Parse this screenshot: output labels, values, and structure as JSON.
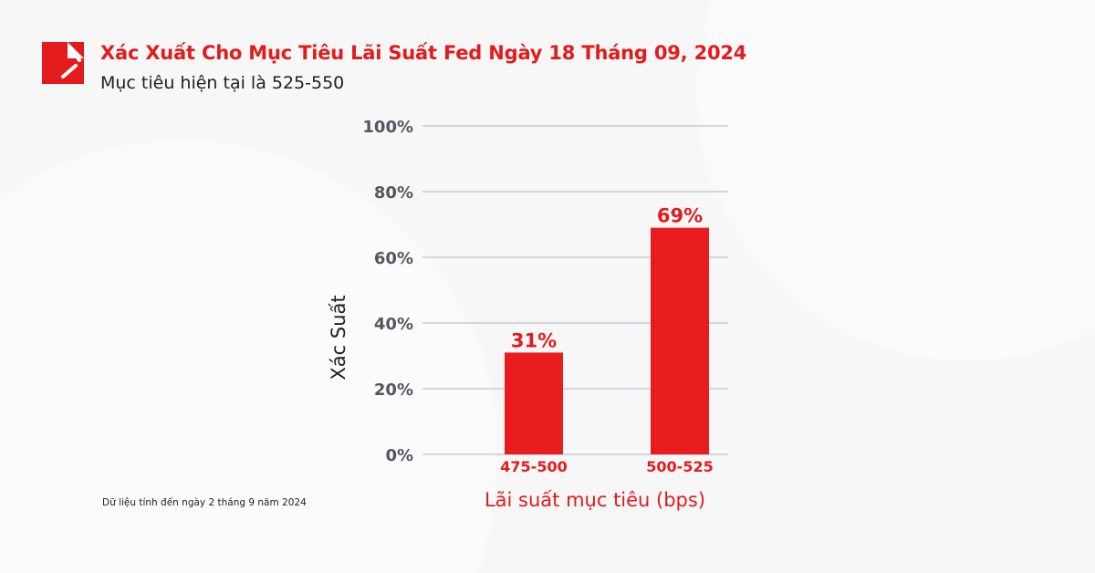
{
  "header": {
    "title": "Xác Xuất Cho Mục Tiêu Lãi Suất Fed Ngày 18 Tháng 09, 2024",
    "subtitle": "Mục tiêu hiện tại là 525-550"
  },
  "footnote": "Dữ liệu tính đến ngày 2 tháng 9 năm 2024",
  "colors": {
    "accent": "#e31b1d",
    "bar": "#e81c1f",
    "grid": "#c9cad3",
    "tick_text": "#555660"
  },
  "chart_data": {
    "type": "bar",
    "title": "Xác Xuất Cho Mục Tiêu Lãi Suất Fed Ngày 18 Tháng 09, 2024",
    "xlabel": "Lãi suất mục tiêu (bps)",
    "ylabel": "Xác Suất",
    "categories": [
      "475-500",
      "500-525"
    ],
    "values": [
      31,
      69
    ],
    "data_labels": [
      "31%",
      "69%"
    ],
    "ylim": [
      0,
      100
    ],
    "yticks": [
      0,
      20,
      40,
      60,
      80,
      100
    ],
    "ytick_labels": [
      "0%",
      "20%",
      "40%",
      "60%",
      "80%",
      "100%"
    ],
    "grid": true,
    "legend": "none"
  }
}
